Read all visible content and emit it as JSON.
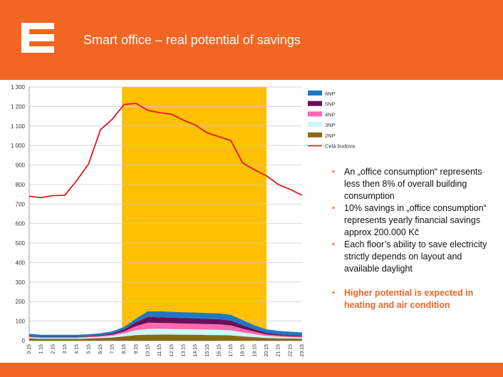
{
  "header": {
    "title": "Smart office – real potential of savings",
    "brand_color": "#f26522"
  },
  "bullets": [
    {
      "text": "An „office consumption“ represents less then 8% of overall building consumption",
      "bold": false
    },
    {
      "text": "10% savings in „office consumption“ represents yearly financial savings approx 200.000 Kč",
      "bold": false
    },
    {
      "text": "Each floor’s ability to save electricity strictly depends on layout and available daylight",
      "bold": false
    },
    {
      "text": "Higher potential is expected in heating and air condition",
      "bold": true
    }
  ],
  "chart_data": {
    "type": "area",
    "title": "",
    "xlabel": "",
    "ylabel": "",
    "ylim": [
      0,
      1300
    ],
    "yticks": [
      0,
      100,
      200,
      300,
      400,
      500,
      600,
      700,
      800,
      900,
      "1 000",
      "1 100",
      "1 200",
      "1 300"
    ],
    "x": [
      "0:15",
      "1:15",
      "2:15",
      "3:15",
      "4:15",
      "5:15",
      "6:15",
      "7:15",
      "8:15",
      "9:15",
      "10:15",
      "11:15",
      "12:15",
      "13:15",
      "14:15",
      "15:15",
      "16:15",
      "17:15",
      "18:15",
      "19:15",
      "20:15",
      "21:15",
      "22:15",
      "23:15"
    ],
    "highlight": {
      "from_index": 8,
      "to_index": 20,
      "color": "#ffc000"
    },
    "series": [
      {
        "name": "2NP",
        "color": "#8b6914",
        "values": [
          12,
          9,
          9,
          9,
          9,
          11,
          13,
          16,
          22,
          28,
          30,
          31,
          31,
          30,
          30,
          29,
          28,
          27,
          22,
          18,
          14,
          12,
          11,
          10
        ]
      },
      {
        "name": "3NP",
        "color": "#ccf7ff",
        "values": [
          6,
          5,
          5,
          5,
          5,
          6,
          7,
          9,
          15,
          25,
          30,
          30,
          29,
          29,
          28,
          28,
          28,
          26,
          20,
          15,
          10,
          8,
          7,
          6
        ]
      },
      {
        "name": "4NP",
        "color": "#ff69b4",
        "values": [
          3,
          3,
          3,
          3,
          3,
          3,
          4,
          6,
          10,
          22,
          32,
          30,
          30,
          29,
          29,
          28,
          28,
          25,
          19,
          13,
          8,
          6,
          5,
          4
        ]
      },
      {
        "name": "5NP",
        "color": "#6b0f5c",
        "values": [
          3,
          3,
          3,
          3,
          3,
          3,
          4,
          6,
          10,
          20,
          30,
          28,
          28,
          27,
          27,
          26,
          26,
          24,
          18,
          12,
          8,
          6,
          5,
          4
        ]
      },
      {
        "name": "6NP",
        "color": "#1f78c1",
        "values": [
          11,
          10,
          10,
          10,
          10,
          10,
          10,
          11,
          13,
          18,
          28,
          31,
          30,
          30,
          30,
          30,
          30,
          30,
          26,
          20,
          18,
          18,
          18,
          18
        ]
      },
      {
        "name": "Celá budova",
        "color": "#e11b22",
        "line": true,
        "values": [
          740,
          733,
          743,
          745,
          820,
          905,
          1080,
          1135,
          1210,
          1216,
          1180,
          1168,
          1160,
          1130,
          1105,
          1065,
          1045,
          1025,
          910,
          875,
          845,
          800,
          775,
          745
        ]
      }
    ],
    "legend": [
      "6NP",
      "5NP",
      "4NP",
      "3NP",
      "2NP",
      "Celá budova"
    ],
    "legend_position": "top-right"
  }
}
